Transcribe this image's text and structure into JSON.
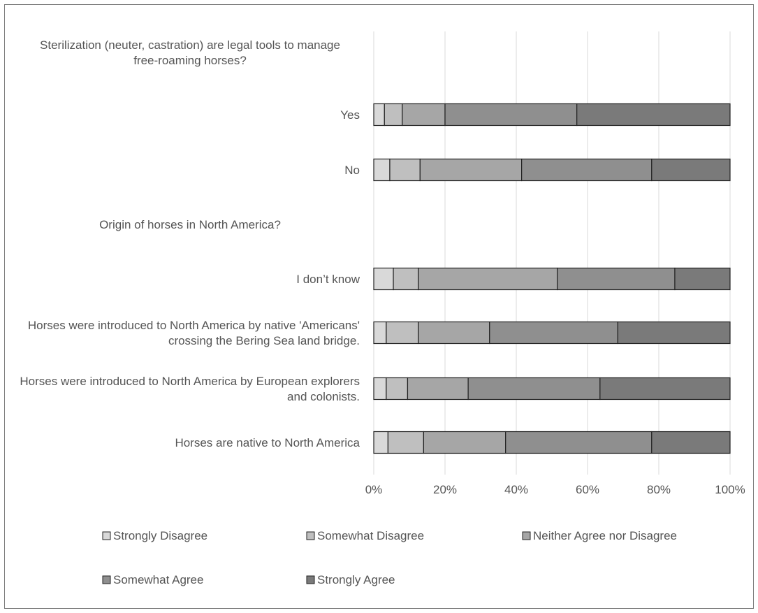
{
  "chart_data": {
    "type": "bar",
    "orientation": "horizontal",
    "stacked": "percent",
    "title": "",
    "xlabel": "",
    "ylabel": "",
    "xlim": [
      0,
      100
    ],
    "x_ticks": [
      "0%",
      "20%",
      "40%",
      "60%",
      "80%",
      "100%"
    ],
    "grid": "vertical",
    "legend_position": "bottom",
    "rows": [
      {
        "label": "Sterilization (neuter, castration) are legal tools to manage free-roaming horses?",
        "header": true
      },
      {
        "label": "Yes",
        "values": [
          3,
          5,
          12,
          37,
          43
        ]
      },
      {
        "label": "No",
        "values": [
          4.5,
          8.5,
          28.5,
          36.5,
          22
        ]
      },
      {
        "label": "Origin of horses in North America?",
        "header": true
      },
      {
        "label": "I don’t know",
        "values": [
          5.5,
          7,
          39,
          33,
          15.5
        ]
      },
      {
        "label": "Horses were introduced to North America by native 'Americans' crossing the Bering Sea land bridge.",
        "values": [
          3.5,
          9,
          20,
          36,
          31.5
        ]
      },
      {
        "label": "Horses were introduced to North America by European explorers and colonists.",
        "values": [
          3.5,
          6,
          17,
          37,
          36.5
        ]
      },
      {
        "label": "Horses are native to North America",
        "values": [
          4,
          10,
          23,
          41,
          22
        ]
      }
    ],
    "series": [
      {
        "name": "Strongly Disagree",
        "color": "#d9d9d9"
      },
      {
        "name": "Somewhat Disagree",
        "color": "#bfbfbf"
      },
      {
        "name": "Neither Agree nor Disagree",
        "color": "#a6a6a6"
      },
      {
        "name": "Somewhat Agree",
        "color": "#8f8f8f"
      },
      {
        "name": "Strongly Agree",
        "color": "#7a7a7a"
      }
    ]
  }
}
